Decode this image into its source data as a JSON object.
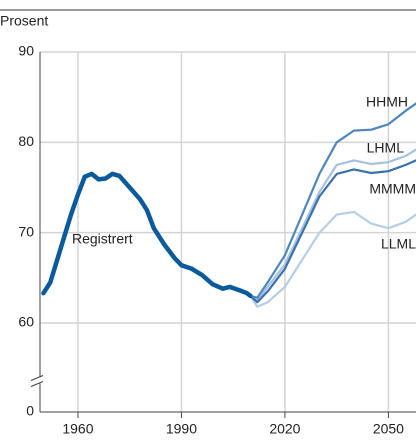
{
  "chart_data": {
    "type": "line",
    "y_label": "Prosent",
    "xlim": [
      1949,
      2058
    ],
    "xticks": [
      1960,
      1990,
      2020,
      2050
    ],
    "ylim": [
      0,
      90
    ],
    "yticks": [
      0,
      60,
      70,
      80,
      90
    ],
    "y_break": [
      0,
      60
    ],
    "grid": true,
    "series": [
      {
        "name": "Registrert",
        "color": "#0a5a9c",
        "x": [
          1950,
          1952,
          1954,
          1956,
          1958,
          1960,
          1962,
          1964,
          1966,
          1968,
          1970,
          1972,
          1975,
          1978,
          1980,
          1982,
          1985,
          1988,
          1990,
          1993,
          1996,
          1999,
          2002,
          2004,
          2007,
          2009,
          2010
        ],
        "values": [
          63.3,
          64.5,
          67,
          69.5,
          72,
          74.2,
          76.2,
          76.5,
          75.9,
          76.0,
          76.5,
          76.3,
          75,
          73.7,
          72.5,
          70.5,
          68.7,
          67.2,
          66.4,
          66,
          65.3,
          64.3,
          63.8,
          64.0,
          63.6,
          63.3,
          63.0
        ]
      },
      {
        "name": "HHMH",
        "color": "#4f86bd",
        "x": [
          2010,
          2012,
          2015,
          2020,
          2025,
          2030,
          2035,
          2040,
          2045,
          2050,
          2055,
          2058
        ],
        "values": [
          63,
          62.8,
          64.5,
          67.5,
          72,
          76.5,
          80,
          81.3,
          81.4,
          82,
          83.5,
          84.3
        ]
      },
      {
        "name": "LHML",
        "color": "#a7c2df",
        "x": [
          2010,
          2012,
          2015,
          2020,
          2025,
          2030,
          2035,
          2040,
          2045,
          2050,
          2055,
          2058
        ],
        "values": [
          63,
          62.5,
          64,
          66.5,
          70.5,
          74.5,
          77.5,
          78,
          77.6,
          77.8,
          78.5,
          79.2
        ]
      },
      {
        "name": "MMMM",
        "color": "#3a72ae",
        "x": [
          2010,
          2012,
          2015,
          2020,
          2025,
          2030,
          2035,
          2040,
          2045,
          2050,
          2055,
          2058
        ],
        "values": [
          63,
          62.3,
          63.5,
          66,
          70,
          74,
          76.5,
          77,
          76.6,
          76.8,
          77.5,
          78
        ]
      },
      {
        "name": "LLML",
        "color": "#b6cde6",
        "x": [
          2010,
          2012,
          2015,
          2020,
          2025,
          2030,
          2035,
          2040,
          2045,
          2050,
          2055,
          2058
        ],
        "values": [
          63,
          61.8,
          62.3,
          64,
          67,
          70,
          72,
          72.3,
          71,
          70.5,
          71.2,
          72
        ]
      }
    ]
  }
}
